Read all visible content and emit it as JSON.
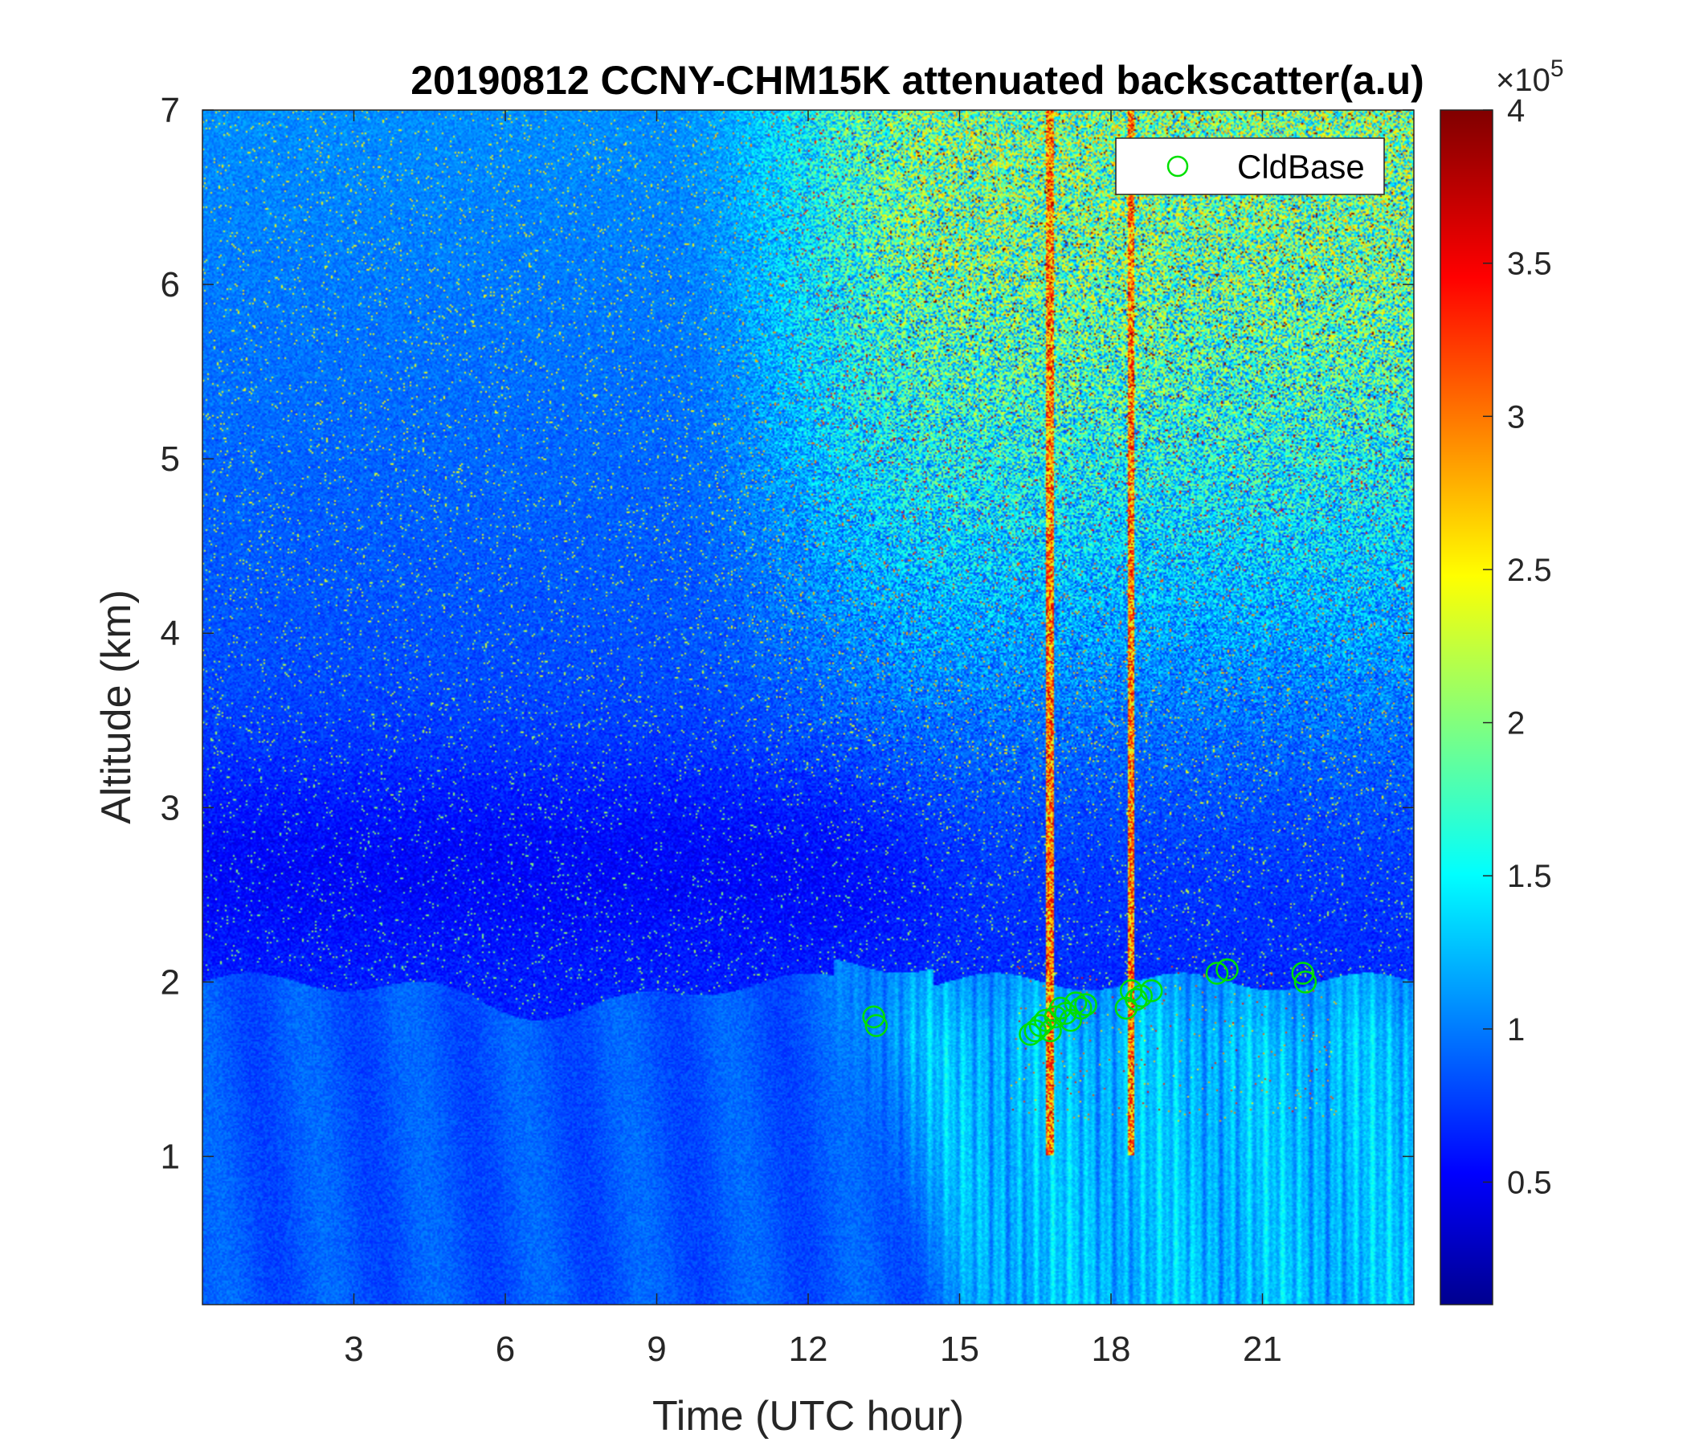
{
  "chart_data": {
    "type": "heatmap",
    "title": "20190812 CCNY-CHM15K attenuated backscatter(a.u)",
    "xlabel": "Time (UTC hour)",
    "ylabel": "Altitude (km)",
    "xlim": [
      0,
      24
    ],
    "ylim": [
      0.15,
      7
    ],
    "xticks": [
      3,
      6,
      9,
      12,
      15,
      18,
      21
    ],
    "xtick_labels": [
      "3",
      "6",
      "9",
      "12",
      "15",
      "18",
      "21"
    ],
    "yticks": [
      1,
      2,
      3,
      4,
      5,
      6,
      7
    ],
    "ytick_labels": [
      "1",
      "2",
      "3",
      "4",
      "5",
      "6",
      "7"
    ],
    "colormap": "jet",
    "colorbar": {
      "clim": [
        0.1,
        4
      ],
      "ticks": [
        0.5,
        1,
        1.5,
        2,
        2.5,
        3,
        3.5,
        4
      ],
      "tick_labels": [
        "0.5",
        "1",
        "1.5",
        "2",
        "2.5",
        "3",
        "3.5",
        "4"
      ],
      "exponent_base": "×10",
      "exponent_power": "5"
    },
    "legend": {
      "location": "top-right",
      "entries": [
        "CldBase"
      ]
    },
    "series": [
      {
        "name": "CldBase",
        "marker": "circle",
        "color": "#00e000",
        "x": [
          13.3,
          13.35,
          16.4,
          16.5,
          16.6,
          16.7,
          16.8,
          16.9,
          17.0,
          17.1,
          17.2,
          17.3,
          17.4,
          17.5,
          18.3,
          18.4,
          18.5,
          18.6,
          18.8,
          20.1,
          20.3,
          21.8,
          21.85
        ],
        "y": [
          1.8,
          1.75,
          1.7,
          1.72,
          1.75,
          1.78,
          1.72,
          1.8,
          1.85,
          1.82,
          1.78,
          1.88,
          1.85,
          1.87,
          1.85,
          1.95,
          1.9,
          1.92,
          1.95,
          2.05,
          2.07,
          2.05,
          2.0
        ]
      }
    ]
  }
}
